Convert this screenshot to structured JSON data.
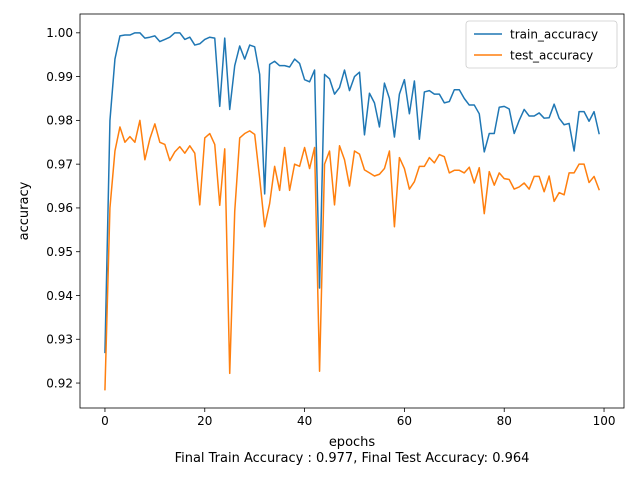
{
  "chart_data": {
    "type": "line",
    "xlabel": "epochs",
    "ylabel": "accuracy",
    "caption": "Final Train Accuracy : 0.977, Final Test Accuracy: 0.964",
    "xlim": [
      -5,
      104
    ],
    "ylim": [
      0.9143,
      1.0043
    ],
    "xticks": [
      0,
      20,
      40,
      60,
      80,
      100
    ],
    "yticks": [
      0.92,
      0.93,
      0.94,
      0.95,
      0.96,
      0.97,
      0.98,
      0.99,
      1.0
    ],
    "xtick_labels": [
      "0",
      "20",
      "40",
      "60",
      "80",
      "100"
    ],
    "ytick_labels": [
      "0.92",
      "0.93",
      "0.94",
      "0.95",
      "0.96",
      "0.97",
      "0.98",
      "0.99",
      "1.00"
    ],
    "legend_position": "top-right",
    "grid": false,
    "series": [
      {
        "name": "train_accuracy",
        "color": "#1f77b4",
        "values": [
          0.927,
          0.98,
          0.994,
          0.9993,
          0.9995,
          0.9995,
          1.0,
          1.0,
          0.9988,
          0.999,
          0.9993,
          0.998,
          0.9985,
          0.999,
          1.0,
          1.0,
          0.9985,
          0.999,
          0.9972,
          0.9975,
          0.9985,
          0.999,
          0.9988,
          0.9832,
          0.9988,
          0.9825,
          0.9925,
          0.997,
          0.994,
          0.9972,
          0.9968,
          0.9905,
          0.9632,
          0.9928,
          0.9935,
          0.9925,
          0.9925,
          0.9922,
          0.994,
          0.993,
          0.9893,
          0.9888,
          0.9915,
          0.9417,
          0.9905,
          0.9895,
          0.986,
          0.9875,
          0.9915,
          0.9868,
          0.99,
          0.991,
          0.9767,
          0.9862,
          0.984,
          0.9785,
          0.9885,
          0.985,
          0.9762,
          0.986,
          0.9893,
          0.9815,
          0.989,
          0.9757,
          0.9865,
          0.9868,
          0.986,
          0.986,
          0.984,
          0.9843,
          0.987,
          0.987,
          0.985,
          0.9835,
          0.9835,
          0.9815,
          0.9728,
          0.977,
          0.977,
          0.983,
          0.9832,
          0.9826,
          0.977,
          0.98,
          0.9825,
          0.981,
          0.981,
          0.9817,
          0.9805,
          0.9806,
          0.9837,
          0.9805,
          0.979,
          0.9793,
          0.973,
          0.982,
          0.982,
          0.9798,
          0.982,
          0.977
        ]
      },
      {
        "name": "test_accuracy",
        "color": "#ff7f0e",
        "values": [
          0.9185,
          0.96,
          0.973,
          0.9785,
          0.975,
          0.9763,
          0.975,
          0.98,
          0.971,
          0.9758,
          0.9792,
          0.975,
          0.9745,
          0.9708,
          0.9728,
          0.974,
          0.9725,
          0.9742,
          0.9725,
          0.9607,
          0.976,
          0.977,
          0.9745,
          0.9606,
          0.9735,
          0.9222,
          0.9592,
          0.976,
          0.977,
          0.9776,
          0.9768,
          0.9668,
          0.9557,
          0.961,
          0.9695,
          0.964,
          0.9738,
          0.964,
          0.97,
          0.9695,
          0.9738,
          0.969,
          0.9738,
          0.9227,
          0.97,
          0.973,
          0.9607,
          0.9742,
          0.971,
          0.965,
          0.973,
          0.9723,
          0.9687,
          0.968,
          0.9673,
          0.9677,
          0.969,
          0.973,
          0.9557,
          0.9715,
          0.969,
          0.9643,
          0.966,
          0.9695,
          0.9695,
          0.9715,
          0.9703,
          0.9722,
          0.9717,
          0.968,
          0.9686,
          0.9686,
          0.968,
          0.9693,
          0.9657,
          0.9692,
          0.9587,
          0.9683,
          0.9652,
          0.968,
          0.9667,
          0.9665,
          0.9643,
          0.9648,
          0.9657,
          0.9643,
          0.9672,
          0.9672,
          0.9637,
          0.9673,
          0.9615,
          0.9635,
          0.963,
          0.968,
          0.968,
          0.97,
          0.97,
          0.9658,
          0.9672,
          0.9642
        ]
      }
    ]
  }
}
